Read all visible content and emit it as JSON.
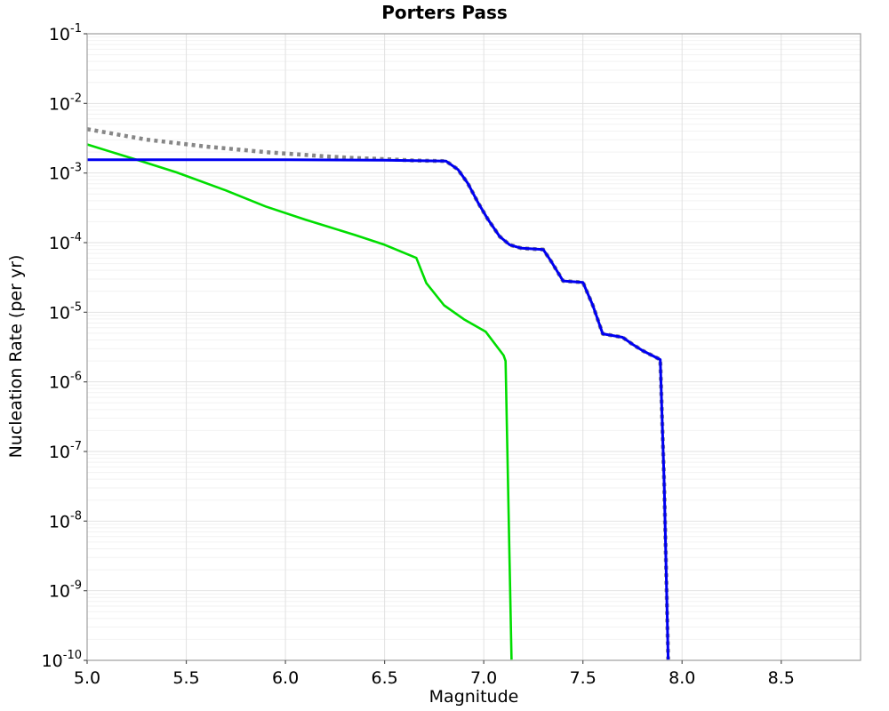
{
  "chart_data": {
    "type": "line",
    "title": "Porters Pass",
    "xlabel": "Magnitude",
    "ylabel": "Nucleation Rate (per yr)",
    "xlim": [
      5.0,
      8.9
    ],
    "ylim_exponents": [
      -1,
      -10
    ],
    "x_ticks": [
      "5.0",
      "5.5",
      "6.0",
      "6.5",
      "7.0",
      "7.5",
      "8.0",
      "8.5"
    ],
    "x_tick_values": [
      5.0,
      5.5,
      6.0,
      6.5,
      7.0,
      7.5,
      8.0,
      8.5
    ],
    "y_tick_base": "10",
    "y_tick_exponents": [
      "-1",
      "-2",
      "-3",
      "-4",
      "-5",
      "-6",
      "-7",
      "-8",
      "-9",
      "-10"
    ],
    "grid": true,
    "legend_position": "none",
    "frame_color": "#a6a6a6",
    "major_grid_color": "#e2e2e2",
    "minor_grid_color": "#f2f2f2",
    "series": [
      {
        "name": "total-rate-dotted",
        "color": "#878787",
        "style": "dotted",
        "width": 4.5,
        "points_mag_log10rate": [
          [
            5.0,
            -2.37
          ],
          [
            5.1,
            -2.42
          ],
          [
            5.2,
            -2.47
          ],
          [
            5.3,
            -2.52
          ],
          [
            5.45,
            -2.57
          ],
          [
            5.6,
            -2.62
          ],
          [
            5.75,
            -2.66
          ],
          [
            5.9,
            -2.7
          ],
          [
            6.05,
            -2.73
          ],
          [
            6.2,
            -2.76
          ],
          [
            6.35,
            -2.785
          ],
          [
            6.5,
            -2.8
          ],
          [
            6.65,
            -2.82
          ],
          [
            6.81,
            -2.83
          ],
          [
            6.87,
            -2.95
          ],
          [
            6.92,
            -3.15
          ],
          [
            6.97,
            -3.42
          ],
          [
            7.02,
            -3.66
          ],
          [
            7.08,
            -3.91
          ],
          [
            7.13,
            -4.03
          ],
          [
            7.19,
            -4.08
          ],
          [
            7.3,
            -4.1
          ],
          [
            7.34,
            -4.27
          ],
          [
            7.4,
            -4.55
          ],
          [
            7.5,
            -4.57
          ],
          [
            7.55,
            -4.9
          ],
          [
            7.6,
            -5.31
          ],
          [
            7.7,
            -5.36
          ],
          [
            7.75,
            -5.46
          ],
          [
            7.8,
            -5.55
          ],
          [
            7.89,
            -5.68
          ],
          [
            7.91,
            -7.5
          ],
          [
            7.93,
            -9.99
          ]
        ]
      },
      {
        "name": "green-curve",
        "color": "#00dd00",
        "style": "solid",
        "width": 2.6,
        "points_mag_log10rate": [
          [
            5.0,
            -2.59
          ],
          [
            5.25,
            -2.81
          ],
          [
            5.45,
            -2.99
          ],
          [
            5.7,
            -3.25
          ],
          [
            5.9,
            -3.48
          ],
          [
            6.1,
            -3.67
          ],
          [
            6.35,
            -3.89
          ],
          [
            6.5,
            -4.03
          ],
          [
            6.66,
            -4.22
          ],
          [
            6.71,
            -4.58
          ],
          [
            6.8,
            -4.9
          ],
          [
            6.9,
            -5.1
          ],
          [
            7.01,
            -5.28
          ],
          [
            7.1,
            -5.62
          ],
          [
            7.11,
            -5.7
          ],
          [
            7.14,
            -9.99
          ]
        ]
      },
      {
        "name": "blue-curve",
        "color": "#0000f0",
        "style": "solid",
        "width": 3,
        "points_mag_log10rate": [
          [
            5.0,
            -2.81
          ],
          [
            6.0,
            -2.81
          ],
          [
            6.5,
            -2.815
          ],
          [
            6.81,
            -2.83
          ],
          [
            6.87,
            -2.95
          ],
          [
            6.92,
            -3.15
          ],
          [
            6.97,
            -3.42
          ],
          [
            7.02,
            -3.66
          ],
          [
            7.08,
            -3.91
          ],
          [
            7.13,
            -4.03
          ],
          [
            7.19,
            -4.08
          ],
          [
            7.3,
            -4.1
          ],
          [
            7.34,
            -4.27
          ],
          [
            7.4,
            -4.55
          ],
          [
            7.5,
            -4.57
          ],
          [
            7.55,
            -4.9
          ],
          [
            7.6,
            -5.31
          ],
          [
            7.7,
            -5.36
          ],
          [
            7.75,
            -5.46
          ],
          [
            7.8,
            -5.55
          ],
          [
            7.89,
            -5.68
          ],
          [
            7.91,
            -7.5
          ],
          [
            7.93,
            -9.99
          ]
        ]
      }
    ]
  }
}
